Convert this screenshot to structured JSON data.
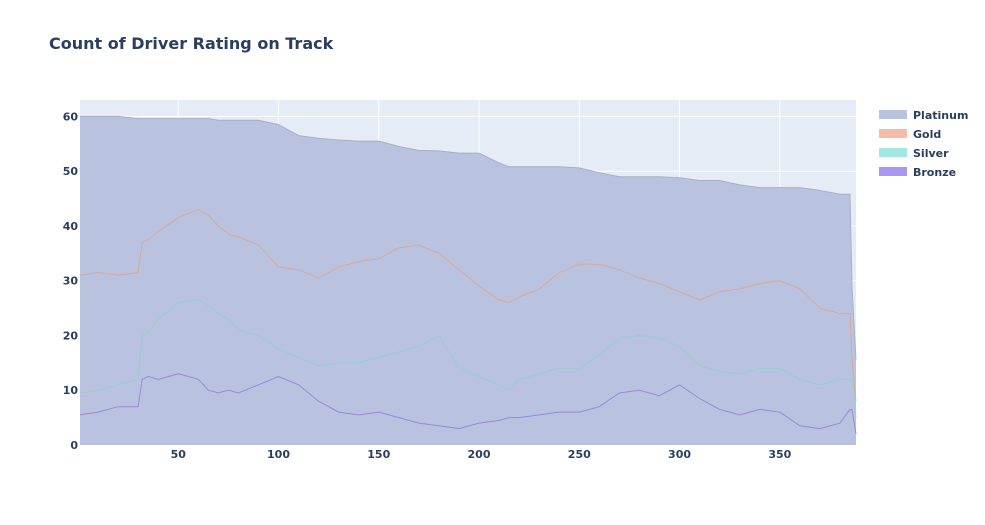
{
  "chart_data": {
    "type": "area",
    "title": "Count of Driver Rating on Track",
    "xlabel": "",
    "ylabel": "",
    "xlim": [
      1,
      388
    ],
    "ylim": [
      0,
      63
    ],
    "xticks": [
      50,
      100,
      150,
      200,
      250,
      300,
      350
    ],
    "yticks": [
      0,
      10,
      20,
      30,
      40,
      50,
      60
    ],
    "grid": true,
    "legend_position": "top-right",
    "stacked": true,
    "x": [
      1,
      10,
      20,
      30,
      32,
      35,
      40,
      50,
      60,
      65,
      70,
      75,
      80,
      90,
      100,
      110,
      120,
      130,
      140,
      150,
      160,
      170,
      180,
      190,
      200,
      210,
      215,
      220,
      230,
      240,
      250,
      260,
      270,
      280,
      290,
      300,
      310,
      320,
      330,
      340,
      350,
      360,
      370,
      380,
      385,
      386,
      388
    ],
    "series": [
      {
        "name": "Bronze",
        "color": "#ab97f3",
        "values": [
          5.5,
          6,
          7,
          7,
          12,
          12.5,
          12,
          13,
          12,
          10,
          9.5,
          10,
          9.5,
          11,
          12.5,
          11,
          8,
          6,
          5.5,
          6,
          5,
          4,
          3.5,
          3,
          4,
          4.5,
          5,
          5,
          5.5,
          6,
          6,
          7,
          9.5,
          10,
          9,
          11,
          8.5,
          6.5,
          5.5,
          6.5,
          6,
          3.5,
          3,
          4,
          6.5,
          6.5,
          2
        ]
      },
      {
        "name": "Silver",
        "color": "#a3e7e5",
        "values": [
          9.5,
          10,
          11,
          12,
          20,
          20.5,
          23,
          26,
          26.5,
          25.5,
          24,
          23,
          21,
          20,
          17.5,
          16,
          14.5,
          15,
          15,
          16,
          17,
          18,
          20,
          14,
          12.5,
          11,
          10,
          12,
          13,
          14,
          14,
          16.5,
          19.5,
          20,
          19.5,
          18,
          14.5,
          13.5,
          13,
          14,
          14,
          12,
          11,
          12,
          12,
          12,
          5
        ]
      },
      {
        "name": "Gold",
        "color": "#f4bba7",
        "values": [
          31,
          31.5,
          31,
          31.5,
          37,
          37.5,
          39,
          41.5,
          43,
          42,
          40,
          38.5,
          38,
          36.5,
          32.5,
          32,
          30.5,
          32.5,
          33.5,
          34,
          36,
          36.5,
          35,
          32,
          29,
          26.5,
          26,
          27,
          28.5,
          31.5,
          33,
          33,
          32,
          30.5,
          29.5,
          28,
          26.5,
          28,
          28.5,
          29.5,
          30,
          28.5,
          25,
          24,
          24,
          15.5,
          8
        ]
      },
      {
        "name": "Platinum",
        "color": "#b9c3e0",
        "values": [
          60,
          60,
          60,
          59.6,
          59.6,
          59.6,
          59.6,
          59.6,
          59.6,
          59.6,
          59.3,
          59.3,
          59.3,
          59.3,
          58.5,
          56.5,
          56,
          55.7,
          55.5,
          55.5,
          54.5,
          53.8,
          53.7,
          53.3,
          53.3,
          51.5,
          50.8,
          50.8,
          50.8,
          50.8,
          50.6,
          49.7,
          49,
          49,
          49,
          48.8,
          48.3,
          48.3,
          47.5,
          47,
          47,
          47,
          46.5,
          45.8,
          45.8,
          29,
          15.5
        ]
      }
    ]
  }
}
